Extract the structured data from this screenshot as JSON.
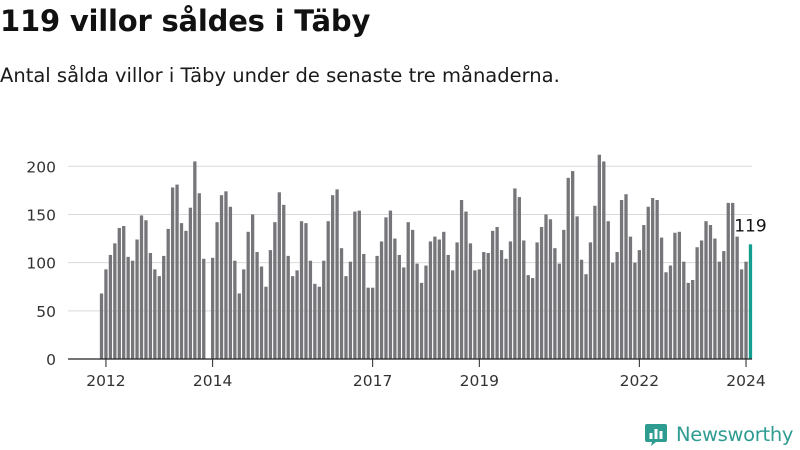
{
  "header": {
    "title": "119 villor såldes i Täby",
    "subtitle": "Antal sålda villor i Täby under de senaste tre månaderna."
  },
  "brand": {
    "name": "Newsworthy",
    "icon": "bar-chart-logo-icon",
    "color": "#2f9c92"
  },
  "chart_data": {
    "type": "bar",
    "x_start": "2011-12",
    "x_end": "2024-02",
    "x_interval": "month",
    "ylim": [
      0,
      220
    ],
    "yticks": [
      0,
      50,
      100,
      150,
      200
    ],
    "xtick_labels": [
      "2012",
      "2014",
      "2017",
      "2019",
      "2022",
      "2024"
    ],
    "grid": true,
    "bar_color": "#76767a",
    "highlight_color": "#139d8f",
    "highlight_label": "119",
    "values": [
      68,
      93,
      108,
      120,
      136,
      138,
      106,
      102,
      124,
      149,
      144,
      110,
      93,
      86,
      107,
      135,
      178,
      181,
      141,
      133,
      157,
      205,
      172,
      104,
      0,
      105,
      142,
      170,
      174,
      158,
      102,
      68,
      93,
      132,
      150,
      111,
      96,
      75,
      113,
      142,
      173,
      160,
      107,
      86,
      92,
      143,
      141,
      102,
      78,
      75,
      102,
      143,
      170,
      176,
      115,
      86,
      101,
      153,
      154,
      109,
      74,
      74,
      107,
      122,
      147,
      154,
      125,
      108,
      95,
      142,
      134,
      99,
      79,
      97,
      122,
      127,
      124,
      132,
      108,
      92,
      121,
      165,
      153,
      120,
      92,
      93,
      111,
      110,
      133,
      137,
      113,
      104,
      122,
      177,
      168,
      123,
      87,
      84,
      121,
      137,
      150,
      145,
      115,
      99,
      134,
      188,
      195,
      148,
      103,
      88,
      121,
      159,
      212,
      205,
      143,
      100,
      111,
      165,
      171,
      127,
      100,
      113,
      139,
      158,
      167,
      165,
      126,
      90,
      97,
      131,
      132,
      101,
      79,
      82,
      116,
      123,
      143,
      139,
      125,
      101,
      112,
      162,
      162,
      127,
      93,
      101,
      119
    ]
  }
}
